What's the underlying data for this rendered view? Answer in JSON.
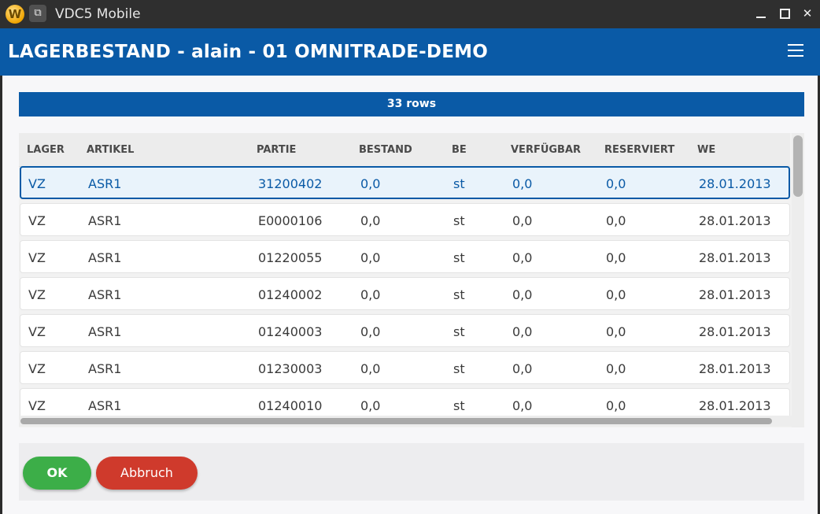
{
  "window": {
    "title": "VDC5 Mobile",
    "logo_letter": "W"
  },
  "header": {
    "title": "LAGERBESTAND - alain - 01 OMNITRADE-DEMO"
  },
  "rowcount": "33 rows",
  "table": {
    "columns": [
      "LAGER",
      "ARTIKEL",
      "PARTIE",
      "BESTAND",
      "BE",
      "VERFÜGBAR",
      "RESERVIERT",
      "WE"
    ],
    "rows": [
      [
        "VZ",
        "ASR1",
        "31200402",
        "0,0",
        "st",
        "0,0",
        "0,0",
        "28.01.2013"
      ],
      [
        "VZ",
        "ASR1",
        "E0000106",
        "0,0",
        "st",
        "0,0",
        "0,0",
        "28.01.2013"
      ],
      [
        "VZ",
        "ASR1",
        "01220055",
        "0,0",
        "st",
        "0,0",
        "0,0",
        "28.01.2013"
      ],
      [
        "VZ",
        "ASR1",
        "01240002",
        "0,0",
        "st",
        "0,0",
        "0,0",
        "28.01.2013"
      ],
      [
        "VZ",
        "ASR1",
        "01240003",
        "0,0",
        "st",
        "0,0",
        "0,0",
        "28.01.2013"
      ],
      [
        "VZ",
        "ASR1",
        "01230003",
        "0,0",
        "st",
        "0,0",
        "0,0",
        "28.01.2013"
      ],
      [
        "VZ",
        "ASR1",
        "01240010",
        "0,0",
        "st",
        "0,0",
        "0,0",
        "28.01.2013"
      ]
    ],
    "selected_row": 0
  },
  "footer": {
    "ok_label": "OK",
    "cancel_label": "Abbruch"
  },
  "colors": {
    "brand": "#0a5aa6",
    "ok": "#3cae48",
    "cancel": "#cf3a2c"
  }
}
